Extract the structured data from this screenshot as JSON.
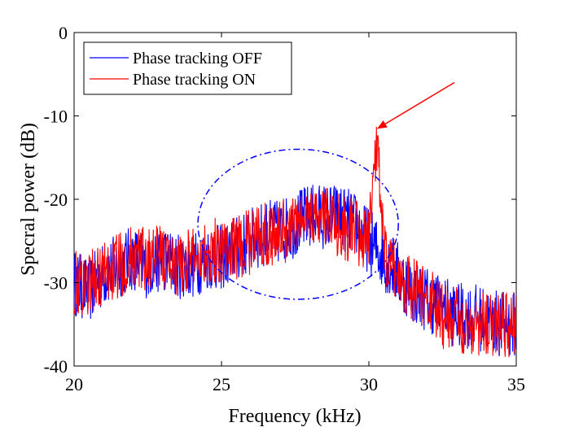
{
  "chart_data": {
    "type": "line",
    "xlabel": "Frequency (kHz)",
    "ylabel": "Specral power (dB)",
    "xlim": [
      20,
      35
    ],
    "ylim": [
      -40,
      0
    ],
    "xticks": [
      "20",
      "25",
      "30",
      "35"
    ],
    "yticks": [
      "0",
      "-10",
      "-20",
      "-30",
      "-40"
    ],
    "grid": false,
    "legend_position": "top-left",
    "series": [
      {
        "name": "Phase tracking OFF",
        "color": "#0000ff",
        "x": [
          20,
          20.5,
          21,
          21.5,
          22,
          22.5,
          23,
          23.5,
          24,
          24.5,
          25,
          25.5,
          26,
          26.5,
          27,
          27.5,
          28,
          28.5,
          29,
          29.5,
          30,
          30.5,
          31,
          31.5,
          32,
          32.5,
          33,
          33.5,
          34,
          34.5,
          35
        ],
        "y": [
          -30,
          -31,
          -29,
          -28,
          -27,
          -28,
          -27,
          -28,
          -28,
          -27,
          -27,
          -26,
          -25,
          -24,
          -24,
          -23,
          -22,
          -22,
          -22,
          -23,
          -25,
          -27,
          -29,
          -31,
          -32,
          -33,
          -34,
          -34,
          -34.5,
          -35,
          -35
        ]
      },
      {
        "name": "Phase tracking ON",
        "color": "#ff0000",
        "x": [
          20,
          20.5,
          21,
          21.5,
          22,
          22.5,
          23,
          23.5,
          24,
          24.5,
          25,
          25.5,
          26,
          26.5,
          27,
          27.5,
          28,
          28.5,
          29,
          29.5,
          30,
          30.3,
          30.5,
          31,
          31.5,
          32,
          32.5,
          33,
          33.5,
          34,
          34.5,
          35
        ],
        "y": [
          -30,
          -30,
          -29,
          -28,
          -27,
          -27,
          -27,
          -28,
          -27,
          -26,
          -26,
          -26,
          -25,
          -24,
          -24,
          -23,
          -22,
          -22,
          -23,
          -24,
          -25,
          -12,
          -27,
          -29,
          -31,
          -32,
          -34,
          -34.5,
          -35,
          -35,
          -35,
          -35
        ]
      }
    ],
    "annotations": [
      {
        "type": "ellipse",
        "color": "#0000ff",
        "style": "dash-dot",
        "center": [
          27.6,
          -23
        ],
        "radii": [
          3.4,
          9
        ]
      },
      {
        "type": "arrow",
        "color": "#ff0000",
        "from": [
          32.9,
          -6
        ],
        "to": [
          30.3,
          -11.5
        ]
      }
    ]
  }
}
